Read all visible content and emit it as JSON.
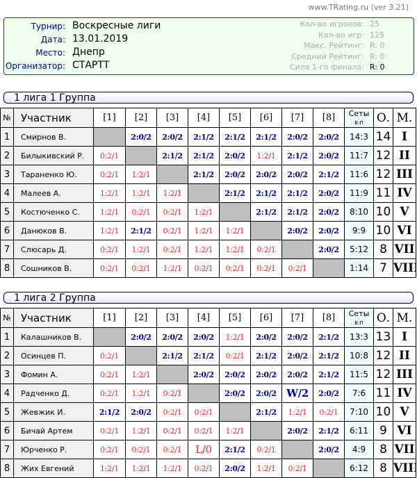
{
  "site": "www.TRating.ru (ver 3.21)",
  "info": {
    "fields": [
      {
        "label": "Турнир:",
        "value": "Воскресные лиги"
      },
      {
        "label": "Дата:",
        "value": "13.01.2019"
      },
      {
        "label": "Место:",
        "value": "Днепр"
      },
      {
        "label": "Организатор:",
        "value": "СТАРТТ"
      }
    ],
    "stats": [
      {
        "label": "Кол-во игроков:",
        "value": "25"
      },
      {
        "label": "Кол-во игр:",
        "value": "125"
      },
      {
        "label": "Макс. Рейтинг:",
        "value": "R:   0"
      },
      {
        "label": "Средний Рейтинг:",
        "value": "R:   0"
      },
      {
        "label": "Сила 1-го финала:",
        "value": "R:   0"
      }
    ]
  },
  "columns": {
    "no": "№",
    "name": "Участник",
    "cols": [
      "[1]",
      "[2]",
      "[3]",
      "[4]",
      "[5]",
      "[6]",
      "[7]",
      "[8]"
    ],
    "sets": "Сеты",
    "sets_sub": "В:П",
    "points": "О.",
    "place": "М."
  },
  "colors": {
    "win": "#00008b",
    "loss": "#ff2020",
    "diag": "#c0c0c0"
  },
  "groups": [
    {
      "title": "1 лига 1 Группа",
      "rows": [
        {
          "n": "1",
          "name": "Смирнов В.",
          "cells": [
            "",
            "2:0/2",
            "2:0/2",
            "2:1/2",
            "2:1/2",
            "2:1/2",
            "2:0/2",
            "2:0/2"
          ],
          "sets": "14:3",
          "pts": "14",
          "place": "I"
        },
        {
          "n": "2",
          "name": "Билыкивский Р.",
          "cells": [
            "0:2/1",
            "",
            "2:1/2",
            "2:1/2",
            "2:0/2",
            "1:2/1",
            "2:1/2",
            "2:0/2"
          ],
          "sets": "11:7",
          "pts": "12",
          "place": "II"
        },
        {
          "n": "3",
          "name": "Тараненко Ю.",
          "cells": [
            "0:2/1",
            "1:2/1",
            "",
            "2:1/2",
            "2:0/2",
            "2:0/2",
            "2:0/2",
            "2:1/2"
          ],
          "sets": "11:6",
          "pts": "12",
          "place": "III"
        },
        {
          "n": "4",
          "name": "Малеев А.",
          "cells": [
            "1:2/1",
            "1:2/1",
            "1:2/1",
            "",
            "2:1/2",
            "2:1/2",
            "2:1/2",
            "2:0/2"
          ],
          "sets": "11:9",
          "pts": "11",
          "place": "IV"
        },
        {
          "n": "5",
          "name": "Костюченко С.",
          "cells": [
            "1:2/1",
            "0:2/1",
            "0:2/1",
            "1:2/1",
            "",
            "2:1/2",
            "2:1/2",
            "2:0/2"
          ],
          "sets": "8:10",
          "pts": "10",
          "place": "V"
        },
        {
          "n": "6",
          "name": "Данюков В.",
          "cells": [
            "1:2/1",
            "2:1/2",
            "0:2/1",
            "1:2/1",
            "1:2/1",
            "",
            "2:0/2",
            "2:0/2"
          ],
          "sets": "9:9",
          "pts": "10",
          "place": "VI"
        },
        {
          "n": "7",
          "name": "Слюсарь Д.",
          "cells": [
            "0:2/1",
            "1:2/1",
            "0:2/1",
            "1:2/1",
            "1:2/1",
            "0:2/1",
            "",
            "2:0/2"
          ],
          "sets": "5:12",
          "pts": "8",
          "place": "VII"
        },
        {
          "n": "8",
          "name": "Сошников В.",
          "cells": [
            "0:2/1",
            "0:2/1",
            "1:2/1",
            "0:2/1",
            "0:2/1",
            "0:2/1",
            "0:2/1",
            ""
          ],
          "sets": "1:14",
          "pts": "7",
          "place": "VIII"
        }
      ]
    },
    {
      "title": "1 лига 2 Группа",
      "rows": [
        {
          "n": "1",
          "name": "Калашников В.",
          "cells": [
            "",
            "2:0/2",
            "2:0/2",
            "2:0/2",
            "1:2/1",
            "2:0/2",
            "2:0/2",
            "2:1/2"
          ],
          "sets": "13:3",
          "pts": "13",
          "place": "I"
        },
        {
          "n": "2",
          "name": "Осинцев П.",
          "cells": [
            "0:2/1",
            "",
            "2:1/2",
            "2:1/2",
            "0:2/1",
            "2:1/2",
            "2:0/2",
            "2:1/2"
          ],
          "sets": "10:8",
          "pts": "12",
          "place": "II"
        },
        {
          "n": "3",
          "name": "Фомин А.",
          "cells": [
            "0:2/1",
            "1:2/1",
            "",
            "2:0/2",
            "2:0/2",
            "2:0/2",
            "2:0/2",
            "2:1/2"
          ],
          "sets": "11:5",
          "pts": "12",
          "place": "III"
        },
        {
          "n": "4",
          "name": "Радченко Д.",
          "cells": [
            "0:2/1",
            "1:2/1",
            "0:2/1",
            "",
            "2:0/2",
            "2:0/2",
            "W/2",
            "2:0/2"
          ],
          "sets": "7:6",
          "pts": "11",
          "place": "IV"
        },
        {
          "n": "5",
          "name": "Жевжик И.",
          "cells": [
            "2:1/2",
            "2:0/2",
            "0:2/1",
            "0:2/1",
            "",
            "2:1/2",
            "1:2/1",
            "0:2/1"
          ],
          "sets": "7:10",
          "pts": "10",
          "place": "V"
        },
        {
          "n": "6",
          "name": "Бичай Артем",
          "cells": [
            "0:2/1",
            "1:2/1",
            "0:2/1",
            "0:2/1",
            "1:2/1",
            "",
            "2:0/2",
            "2:1/2"
          ],
          "sets": "6:11",
          "pts": "9",
          "place": "VI"
        },
        {
          "n": "7",
          "name": "Юрченко Р.",
          "cells": [
            "0:2/1",
            "0:2/1",
            "0:2/1",
            "L/0",
            "2:1/2",
            "0:2/1",
            "",
            "2:0/2"
          ],
          "sets": "4:9",
          "pts": "8",
          "place": "VII"
        },
        {
          "n": "8",
          "name": "Жих Евгений",
          "cells": [
            "1:2/1",
            "1:2/1",
            "1:2/1",
            "0:2/1",
            "2:0/2",
            "1:2/1",
            "0:2/1",
            ""
          ],
          "sets": "6:12",
          "pts": "8",
          "place": "VIII"
        }
      ]
    }
  ]
}
